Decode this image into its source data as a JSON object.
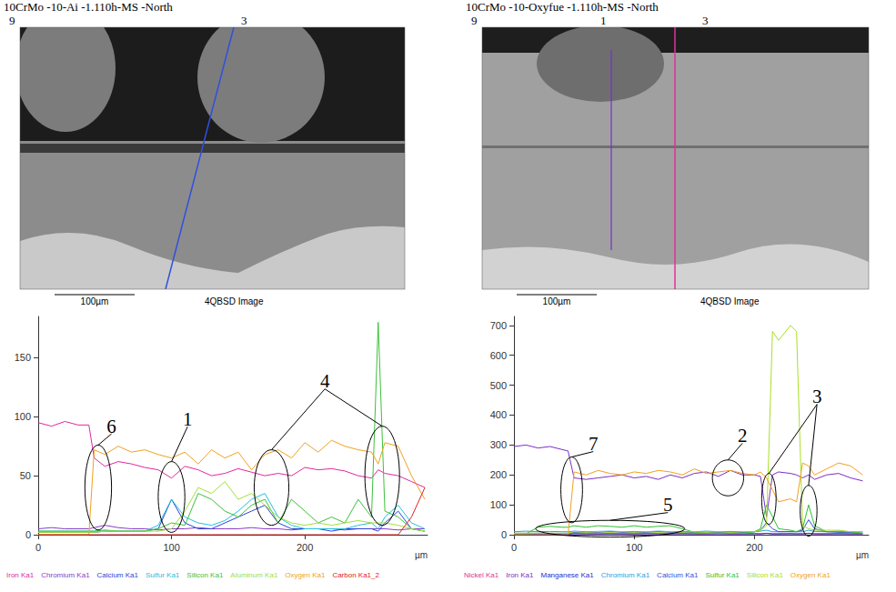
{
  "micrographs": [
    {
      "title": "10CrMo -10-Ai -1.110h-MS -North",
      "labels": [
        "9",
        "3"
      ],
      "scale_bar": "100µm",
      "detector": "4QBSD Image"
    },
    {
      "title": "10CrMo -10-Oxyfue -1.110h-MS -North",
      "labels": [
        "9",
        "1",
        "3"
      ],
      "scale_bar": "100µm",
      "detector": "4QBSD Image"
    }
  ],
  "chart_data": [
    {
      "type": "line",
      "x_label": "µm",
      "grid": false,
      "legend": "bottom",
      "x": [
        0,
        10,
        20,
        30,
        38,
        42,
        50,
        60,
        70,
        80,
        90,
        100,
        110,
        120,
        130,
        140,
        150,
        160,
        170,
        180,
        190,
        200,
        210,
        220,
        230,
        240,
        250,
        255,
        260,
        270,
        280,
        290
      ],
      "xlim": [
        0,
        292
      ],
      "xticks": [
        0,
        100,
        200
      ],
      "ylim": [
        0,
        185
      ],
      "yticks": [
        0,
        50,
        100,
        150
      ],
      "series": [
        {
          "name": "Iron Ka1",
          "color": "#e0289e",
          "values": [
            95,
            92,
            96,
            93,
            93,
            65,
            58,
            62,
            60,
            57,
            55,
            48,
            58,
            55,
            50,
            52,
            56,
            53,
            50,
            52,
            50,
            57,
            55,
            56,
            54,
            50,
            48,
            55,
            52,
            50,
            45,
            40
          ]
        },
        {
          "name": "Chromium Ka1",
          "color": "#8a3cc8",
          "values": [
            5,
            6,
            5,
            5,
            5,
            6,
            8,
            6,
            5,
            5,
            4,
            5,
            5,
            6,
            5,
            5,
            5,
            6,
            5,
            5,
            4,
            5,
            5,
            5,
            4,
            5,
            5,
            5,
            5,
            4,
            5,
            5
          ]
        },
        {
          "name": "Calcium Ka1",
          "color": "#2a44d8",
          "values": [
            2,
            2,
            2,
            2,
            2,
            2,
            3,
            3,
            3,
            3,
            5,
            30,
            10,
            5,
            5,
            10,
            15,
            20,
            25,
            10,
            5,
            5,
            5,
            3,
            5,
            5,
            5,
            3,
            10,
            20,
            5,
            3
          ]
        },
        {
          "name": "Sulfur Ka1",
          "color": "#22c0e0",
          "values": [
            3,
            3,
            3,
            3,
            3,
            3,
            3,
            3,
            3,
            3,
            8,
            30,
            15,
            10,
            8,
            12,
            20,
            30,
            35,
            15,
            8,
            5,
            5,
            5,
            5,
            8,
            10,
            5,
            15,
            25,
            10,
            5
          ]
        },
        {
          "name": "Silicon Ka1",
          "color": "#3cc03c",
          "values": [
            3,
            3,
            3,
            3,
            3,
            3,
            4,
            3,
            3,
            3,
            5,
            10,
            8,
            35,
            30,
            20,
            15,
            25,
            30,
            10,
            30,
            20,
            10,
            15,
            10,
            30,
            15,
            180,
            20,
            15,
            5,
            3
          ]
        },
        {
          "name": "Aluminum Ka1",
          "color": "#9ee03c",
          "values": [
            2,
            2,
            2,
            2,
            2,
            2,
            3,
            3,
            3,
            3,
            3,
            5,
            20,
            40,
            35,
            45,
            30,
            35,
            25,
            15,
            10,
            8,
            10,
            8,
            10,
            12,
            10,
            10,
            10,
            8,
            5,
            3
          ]
        },
        {
          "name": "Oxygen Ka1",
          "color": "#f0a020",
          "values": [
            0,
            0,
            0,
            0,
            0,
            72,
            68,
            75,
            70,
            72,
            68,
            65,
            70,
            60,
            72,
            65,
            70,
            55,
            68,
            72,
            65,
            78,
            70,
            80,
            75,
            72,
            70,
            60,
            78,
            75,
            50,
            30
          ]
        },
        {
          "name": "Carbon Ka1_2",
          "color": "#e02020",
          "values": [
            0,
            0,
            0,
            0,
            0,
            0,
            0,
            0,
            0,
            0,
            0,
            0,
            0,
            0,
            0,
            0,
            0,
            0,
            0,
            0,
            0,
            0,
            0,
            0,
            0,
            0,
            0,
            0,
            0,
            0,
            15,
            40
          ]
        }
      ],
      "annotations": [
        {
          "text": "6",
          "x": 55,
          "y": 84,
          "ellipses": [
            {
              "x": 45,
              "y": 40,
              "rx": 10,
              "ry": 36
            }
          ]
        },
        {
          "text": "1",
          "x": 112,
          "y": 90,
          "ellipses": [
            {
              "x": 100,
              "y": 32,
              "rx": 10,
              "ry": 30
            }
          ]
        },
        {
          "text": "4",
          "x": 215,
          "y": 122,
          "ellipses": [
            {
              "x": 175,
              "y": 40,
              "rx": 13,
              "ry": 32
            },
            {
              "x": 258,
              "y": 50,
              "rx": 13,
              "ry": 42
            }
          ]
        }
      ]
    },
    {
      "type": "line",
      "x_label": "µm",
      "grid": false,
      "legend": "bottom",
      "x": [
        0,
        10,
        20,
        30,
        40,
        45,
        50,
        60,
        70,
        80,
        90,
        100,
        110,
        120,
        130,
        140,
        150,
        160,
        170,
        180,
        190,
        200,
        205,
        210,
        215,
        220,
        230,
        235,
        240,
        245,
        250,
        260,
        270,
        280,
        290
      ],
      "xlim": [
        0,
        295
      ],
      "xticks": [
        0,
        100,
        200
      ],
      "ylim": [
        0,
        730
      ],
      "yticks": [
        0,
        100,
        200,
        300,
        400,
        500,
        600,
        700
      ],
      "series": [
        {
          "name": "Nickel Ka1",
          "color": "#e0309a",
          "values": [
            3,
            4,
            3,
            3,
            4,
            3,
            4,
            3,
            3,
            4,
            3,
            3,
            4,
            3,
            3,
            4,
            3,
            3,
            4,
            3,
            3,
            4,
            3,
            5,
            3,
            3,
            4,
            3,
            3,
            5,
            3,
            3,
            4,
            3,
            3
          ]
        },
        {
          "name": "Iron Ka1",
          "color": "#7a2fc4",
          "values": [
            295,
            300,
            290,
            295,
            285,
            280,
            190,
            185,
            190,
            195,
            200,
            190,
            195,
            185,
            200,
            190,
            205,
            210,
            195,
            215,
            200,
            200,
            195,
            60,
            200,
            210,
            205,
            200,
            190,
            200,
            185,
            200,
            205,
            190,
            180
          ]
        },
        {
          "name": "Manganese Ka1",
          "color": "#2a2ad0",
          "values": [
            2,
            2,
            2,
            2,
            2,
            2,
            3,
            3,
            3,
            3,
            3,
            3,
            3,
            3,
            3,
            3,
            3,
            3,
            3,
            3,
            3,
            3,
            3,
            4,
            3,
            3,
            3,
            3,
            3,
            4,
            3,
            3,
            3,
            3,
            3
          ]
        },
        {
          "name": "Chromium Ka1",
          "color": "#2aa0e0",
          "values": [
            10,
            12,
            10,
            11,
            10,
            10,
            12,
            10,
            11,
            12,
            10,
            11,
            10,
            12,
            10,
            11,
            10,
            12,
            10,
            11,
            10,
            10,
            12,
            15,
            10,
            10,
            11,
            10,
            10,
            15,
            11,
            10,
            12,
            10,
            10
          ]
        },
        {
          "name": "Calcium Ka1",
          "color": "#3050e0",
          "values": [
            5,
            5,
            5,
            5,
            5,
            5,
            8,
            8,
            8,
            10,
            8,
            8,
            8,
            10,
            8,
            8,
            8,
            8,
            8,
            8,
            8,
            10,
            15,
            40,
            20,
            10,
            10,
            10,
            15,
            50,
            20,
            10,
            8,
            8,
            5
          ]
        },
        {
          "name": "Sulfur Ka1",
          "color": "#30c030",
          "values": [
            3,
            3,
            25,
            28,
            25,
            25,
            30,
            25,
            30,
            28,
            25,
            30,
            25,
            28,
            30,
            20,
            8,
            5,
            5,
            5,
            5,
            10,
            20,
            100,
            60,
            20,
            15,
            10,
            20,
            100,
            30,
            10,
            10,
            10,
            5
          ]
        },
        {
          "name": "Silicon Ka1",
          "color": "#a8e020",
          "values": [
            5,
            5,
            5,
            5,
            5,
            5,
            10,
            8,
            10,
            8,
            10,
            8,
            10,
            8,
            10,
            8,
            10,
            8,
            10,
            8,
            10,
            10,
            15,
            30,
            680,
            650,
            700,
            680,
            30,
            20,
            15,
            15,
            15,
            10,
            10
          ]
        },
        {
          "name": "Oxygen Ka1",
          "color": "#f0a020",
          "values": [
            0,
            0,
            0,
            0,
            0,
            0,
            210,
            200,
            215,
            205,
            200,
            210,
            205,
            215,
            210,
            200,
            220,
            205,
            210,
            215,
            205,
            200,
            210,
            190,
            150,
            110,
            120,
            110,
            240,
            230,
            200,
            220,
            240,
            230,
            200
          ]
        }
      ],
      "annotations": [
        {
          "text": "7",
          "x": 66,
          "y": 272,
          "ellipses": [
            {
              "x": 48,
              "y": 150,
              "rx": 9,
              "ry": 110
            }
          ]
        },
        {
          "text": "2",
          "x": 190,
          "y": 300,
          "ellipses": [
            {
              "x": 178,
              "y": 190,
              "rx": 13,
              "ry": 60
            }
          ]
        },
        {
          "text": "3",
          "x": 252,
          "y": 430,
          "ellipses": [
            {
              "x": 212,
              "y": 120,
              "rx": 6,
              "ry": 85
            },
            {
              "x": 245,
              "y": 80,
              "rx": 7,
              "ry": 85
            }
          ]
        },
        {
          "text": "5",
          "x": 128,
          "y": 68,
          "ellipses": [
            {
              "x": 80,
              "y": 20,
              "rx": 62,
              "ry": 28
            }
          ]
        }
      ]
    }
  ]
}
